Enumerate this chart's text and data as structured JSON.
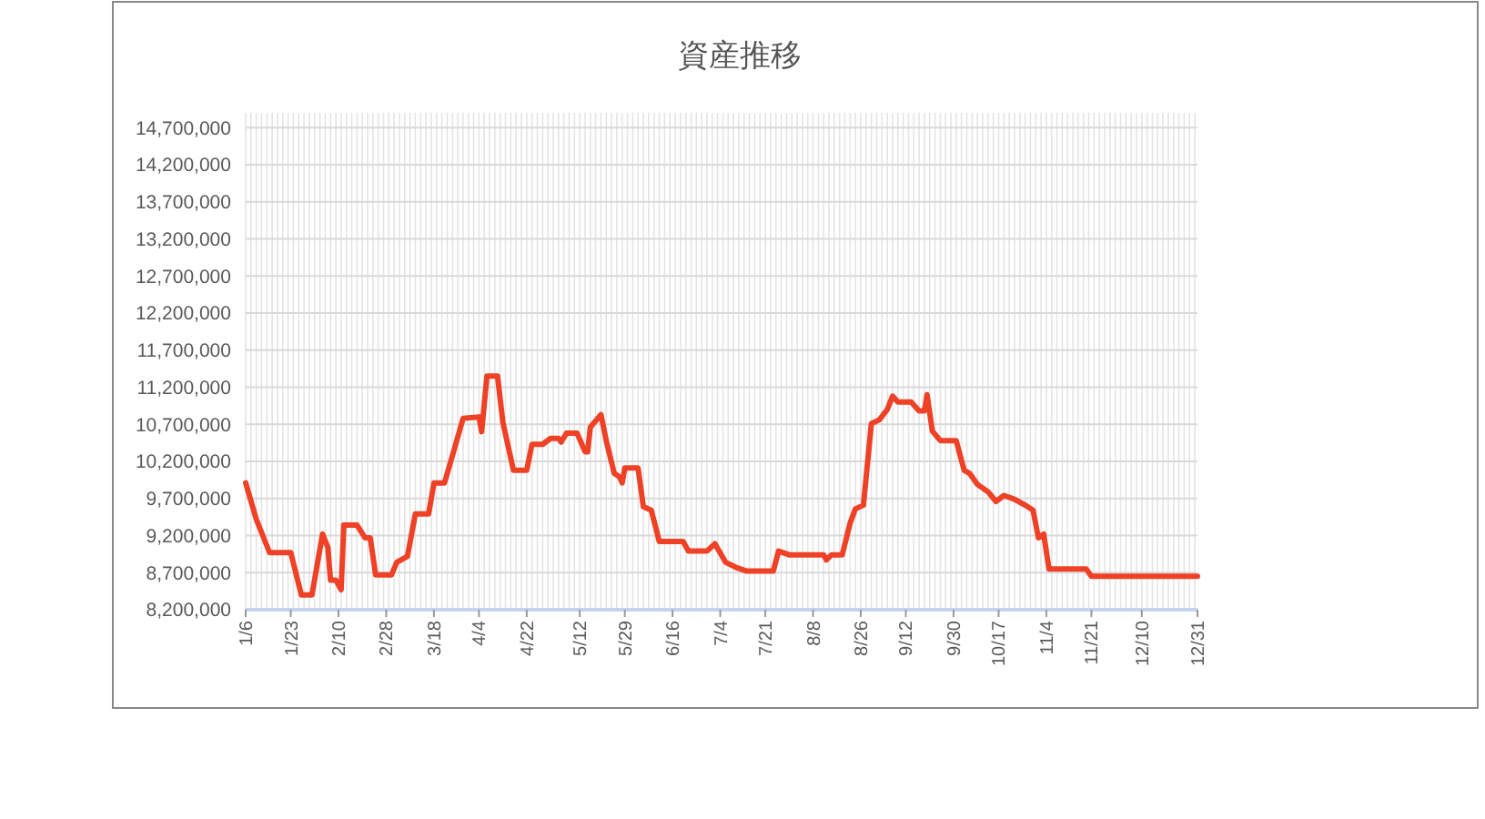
{
  "chart_data": {
    "type": "line",
    "title": "資産推移",
    "x": [
      "--01-06",
      "--01-10",
      "--01-12",
      "--01-15",
      "--01-23",
      "--01-27",
      "--01-31",
      "--02-04",
      "--02-06",
      "--02-07",
      "--02-09",
      "--02-11",
      "--02-12",
      "--02-17",
      "--02-20",
      "--02-22",
      "--02-24",
      "--03-02",
      "--03-04",
      "--03-08",
      "--03-11",
      "--03-16",
      "--03-18",
      "--03-22",
      "--03-25",
      "--03-29",
      "--04-04",
      "--04-05",
      "--04-07",
      "--04-11",
      "--04-13",
      "--04-17",
      "--04-22",
      "--04-24",
      "--04-28",
      "--05-01",
      "--05-04",
      "--05-05",
      "--05-07",
      "--05-11",
      "--05-14",
      "--05-15",
      "--05-16",
      "--05-20",
      "--05-22",
      "--05-25",
      "--05-27",
      "--05-28",
      "--05-29",
      "--06-03",
      "--06-05",
      "--06-08",
      "--06-11",
      "--06-20",
      "--06-22",
      "--06-29",
      "--07-02",
      "--07-06",
      "--07-10",
      "--07-14",
      "--07-24",
      "--07-26",
      "--07-30",
      "--08-12",
      "--08-13",
      "--08-15",
      "--08-19",
      "--08-22",
      "--08-24",
      "--08-27",
      "--08-30",
      "--09-02",
      "--09-05",
      "--09-07",
      "--09-09",
      "--09-14",
      "--09-17",
      "--09-19",
      "--09-20",
      "--09-22",
      "--09-25",
      "--10-01",
      "--10-04",
      "--10-06",
      "--10-09",
      "--10-11",
      "--10-13",
      "--10-16",
      "--10-19",
      "--10-23",
      "--10-27",
      "--10-30",
      "--11-01",
      "--11-03",
      "--11-05",
      "--11-19",
      "--11-21",
      "--12-31"
    ],
    "series": [
      {
        "color": "#ee4126",
        "values": [
          9910000,
          9420000,
          9240000,
          8970000,
          8970000,
          8400000,
          8400000,
          9220000,
          9040000,
          8600000,
          8600000,
          8470000,
          9340000,
          9340000,
          9170000,
          9170000,
          8670000,
          8670000,
          8840000,
          8920000,
          9490000,
          9490000,
          9910000,
          9910000,
          10280000,
          10780000,
          10800000,
          10600000,
          11350000,
          11350000,
          10730000,
          10080000,
          10080000,
          10430000,
          10430000,
          10510000,
          10510000,
          10460000,
          10580000,
          10580000,
          10330000,
          10330000,
          10660000,
          10830000,
          10480000,
          10040000,
          9990000,
          9910000,
          10110000,
          10110000,
          9590000,
          9540000,
          9120000,
          9120000,
          8990000,
          8990000,
          9090000,
          8840000,
          8770000,
          8720000,
          8720000,
          8990000,
          8940000,
          8940000,
          8870000,
          8940000,
          8940000,
          9370000,
          9560000,
          9610000,
          10710000,
          10760000,
          10900000,
          11080000,
          11000000,
          11000000,
          10880000,
          10880000,
          11100000,
          10610000,
          10480000,
          10480000,
          10080000,
          10040000,
          9890000,
          9840000,
          9790000,
          9660000,
          9740000,
          9690000,
          9610000,
          9540000,
          9170000,
          9220000,
          8750000,
          8750000,
          8650000,
          8650000
        ]
      }
    ],
    "xlim": [
      "--01-06",
      "--12-31"
    ],
    "xticks": [
      {
        "value": "--01-06",
        "label": "1/6"
      },
      {
        "value": "--01-23",
        "label": "1/23"
      },
      {
        "value": "--02-10",
        "label": "2/10"
      },
      {
        "value": "--02-28",
        "label": "2/28"
      },
      {
        "value": "--03-18",
        "label": "3/18"
      },
      {
        "value": "--04-04",
        "label": "4/4"
      },
      {
        "value": "--04-22",
        "label": "4/22"
      },
      {
        "value": "--05-12",
        "label": "5/12"
      },
      {
        "value": "--05-29",
        "label": "5/29"
      },
      {
        "value": "--06-16",
        "label": "6/16"
      },
      {
        "value": "--07-04",
        "label": "7/4"
      },
      {
        "value": "--07-21",
        "label": "7/21"
      },
      {
        "value": "--08-08",
        "label": "8/8"
      },
      {
        "value": "--08-26",
        "label": "8/26"
      },
      {
        "value": "--09-12",
        "label": "9/12"
      },
      {
        "value": "--09-30",
        "label": "9/30"
      },
      {
        "value": "--10-17",
        "label": "10/17"
      },
      {
        "value": "--11-04",
        "label": "11/4"
      },
      {
        "value": "--11-21",
        "label": "11/21"
      },
      {
        "value": "--12-10",
        "label": "12/10"
      },
      {
        "value": "--12-31",
        "label": "12/31"
      }
    ],
    "ylim": [
      8200000,
      14900000
    ],
    "yticks": [
      {
        "value": 8200000,
        "label": "8,200,000"
      },
      {
        "value": 8700000,
        "label": "8,700,000"
      },
      {
        "value": 9200000,
        "label": "9,200,000"
      },
      {
        "value": 9700000,
        "label": "9,700,000"
      },
      {
        "value": 10200000,
        "label": "10,200,000"
      },
      {
        "value": 10700000,
        "label": "10,700,000"
      },
      {
        "value": 11200000,
        "label": "11,200,000"
      },
      {
        "value": 11700000,
        "label": "11,700,000"
      },
      {
        "value": 12200000,
        "label": "12,200,000"
      },
      {
        "value": 12700000,
        "label": "12,700,000"
      },
      {
        "value": 13200000,
        "label": "13,200,000"
      },
      {
        "value": 13700000,
        "label": "13,700,000"
      },
      {
        "value": 14200000,
        "label": "14,200,000"
      },
      {
        "value": 14700000,
        "label": "14,700,000"
      }
    ],
    "grid": true,
    "line_style": "solid"
  }
}
